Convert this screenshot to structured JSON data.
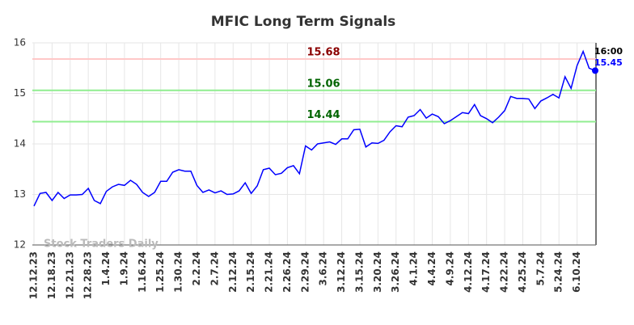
{
  "chart_data": {
    "type": "line",
    "title": "MFIC Long Term Signals",
    "categories": [
      "12.12.23",
      null,
      null,
      "12.18.23",
      null,
      null,
      "12.21.23",
      null,
      null,
      "12.28.23",
      null,
      null,
      "1.4.24",
      null,
      null,
      "1.9.24",
      null,
      null,
      "1.16.24",
      null,
      null,
      "1.25.24",
      null,
      null,
      "1.30.24",
      null,
      null,
      "2.2.24",
      null,
      null,
      "2.7.24",
      null,
      null,
      "2.12.24",
      null,
      null,
      "2.15.24",
      null,
      null,
      "2.21.24",
      null,
      null,
      "2.26.24",
      null,
      null,
      "2.29.24",
      null,
      null,
      "3.6.24",
      null,
      null,
      "3.12.24",
      null,
      null,
      "3.15.24",
      null,
      null,
      "3.20.24",
      null,
      null,
      "3.26.24",
      null,
      null,
      "4.1.24",
      null,
      null,
      "4.4.24",
      null,
      null,
      "4.9.24",
      null,
      null,
      "4.12.24",
      null,
      null,
      "4.17.24",
      null,
      null,
      "4.22.24",
      null,
      null,
      "4.25.24",
      null,
      null,
      "5.7.24",
      null,
      null,
      "5.24.24",
      null,
      null,
      "6.10.24",
      null,
      null,
      null
    ],
    "values": [
      12.77,
      13.02,
      13.04,
      12.88,
      13.04,
      12.92,
      12.99,
      12.99,
      13.0,
      13.12,
      12.88,
      12.82,
      13.06,
      13.15,
      13.2,
      13.18,
      13.28,
      13.2,
      13.04,
      12.96,
      13.04,
      13.26,
      13.26,
      13.44,
      13.49,
      13.46,
      13.46,
      13.18,
      13.04,
      13.09,
      13.03,
      13.07,
      13.0,
      13.01,
      13.07,
      13.23,
      13.02,
      13.17,
      13.49,
      13.52,
      13.39,
      13.42,
      13.53,
      13.57,
      13.41,
      13.96,
      13.88,
      14.0,
      14.02,
      14.04,
      13.99,
      14.1,
      14.1,
      14.28,
      14.29,
      13.94,
      14.02,
      14.01,
      14.07,
      14.24,
      14.36,
      14.34,
      14.53,
      14.56,
      14.68,
      14.51,
      14.59,
      14.54,
      14.4,
      14.46,
      14.54,
      14.62,
      14.6,
      14.78,
      14.56,
      14.5,
      14.42,
      14.53,
      14.66,
      14.94,
      14.9,
      14.9,
      14.89,
      14.7,
      14.85,
      14.91,
      14.98,
      14.91,
      15.33,
      15.1,
      15.55,
      15.83,
      15.5,
      15.45
    ],
    "color": "#0000ff",
    "ylim": [
      12,
      16
    ],
    "yticks": [
      12,
      13,
      14,
      15,
      16
    ],
    "grid": true,
    "hlines": [
      {
        "value": 15.68,
        "color": "#ffc8c8",
        "label_color": "#8b0000"
      },
      {
        "value": 15.06,
        "color": "#90ee90",
        "label_color": "#006400"
      },
      {
        "value": 14.44,
        "color": "#90ee90",
        "label_color": "#006400"
      }
    ],
    "last_label": "16:00",
    "watermark": "Stock Traders Daily"
  }
}
